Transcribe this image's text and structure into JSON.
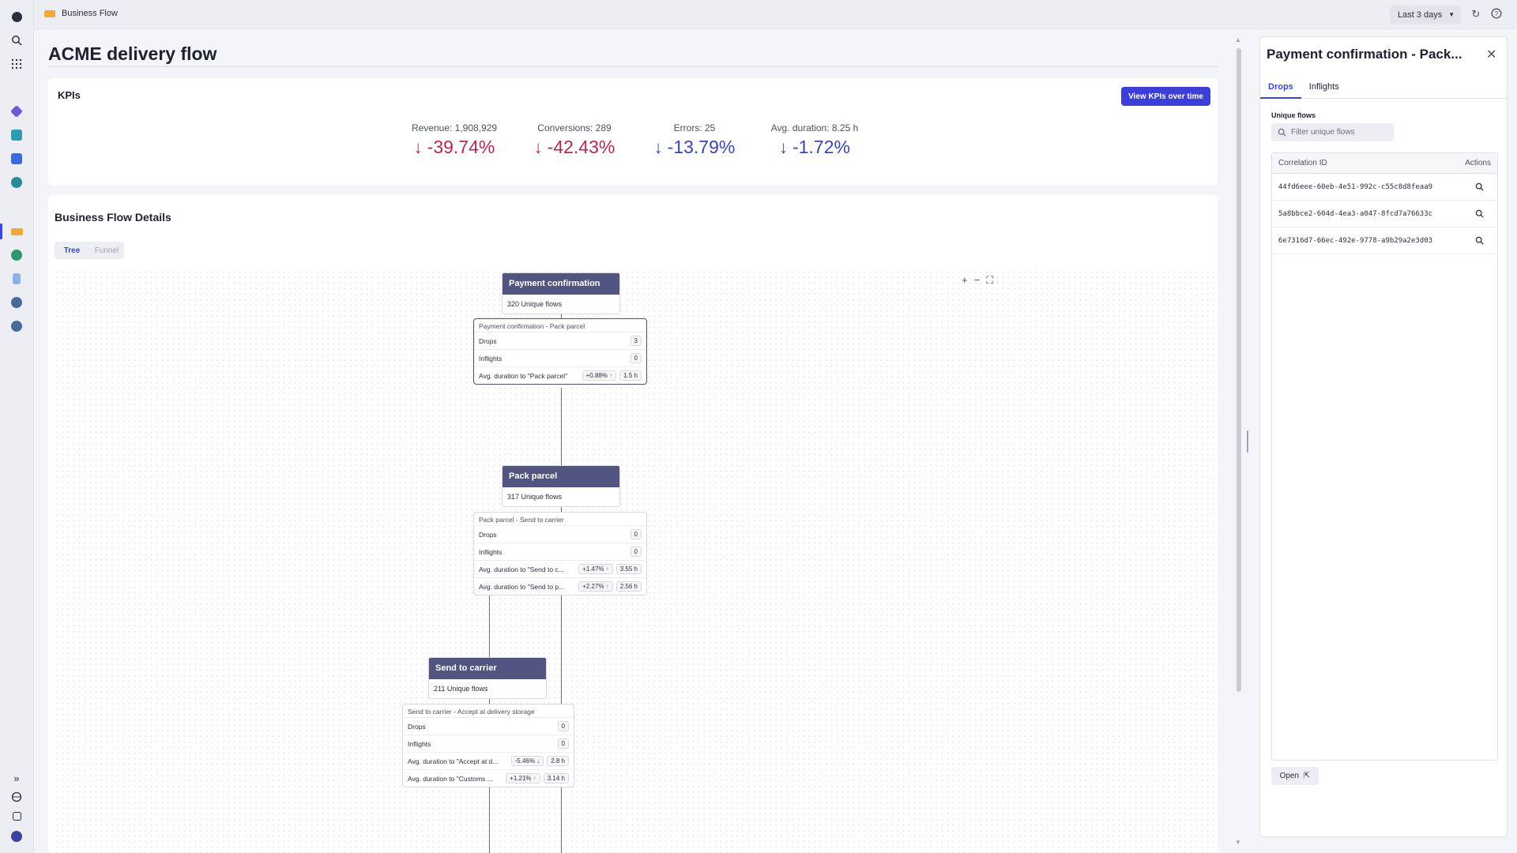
{
  "colors": {
    "accent": "#3b3fd6",
    "node_header": "#515580",
    "negative": "#b22a52",
    "neutral_down": "#3b45b0"
  },
  "topbar": {
    "breadcrumb": "Business Flow",
    "timeframe": "Last 3 days"
  },
  "page": {
    "title": "ACME delivery flow"
  },
  "kpis": {
    "section_label": "KPIs",
    "button_label": "View KPIs over time",
    "items": [
      {
        "name": "Revenue: 1,908,929",
        "value": "-39.74%"
      },
      {
        "name": "Conversions: 289",
        "value": "-42.43%"
      },
      {
        "name": "Errors: 25",
        "value": "-13.79%"
      },
      {
        "name": "Avg. duration: 8.25 h",
        "value": "-1.72%"
      }
    ]
  },
  "flow": {
    "section_label": "Business Flow Details",
    "tabs": [
      "Tree",
      "Funnel"
    ],
    "nodes": [
      {
        "title": "Payment confirmation",
        "subtitle": "320 Unique flows"
      },
      {
        "title": "Pack parcel",
        "subtitle": "317 Unique flows"
      },
      {
        "title": "Send to carrier",
        "subtitle": "211 Unique flows"
      }
    ],
    "edges": [
      {
        "title": "Payment confirmation - Pack parcel",
        "rows": [
          {
            "label": "Drops",
            "value": "3"
          },
          {
            "label": "Inflights",
            "value": "0"
          },
          {
            "label": "Avg. duration to \"Pack parcel\"",
            "change": "+0.88%",
            "value": "1.5 h"
          }
        ]
      },
      {
        "title": "Pack parcel - Send to carrier",
        "rows": [
          {
            "label": "Drops",
            "value": "0"
          },
          {
            "label": "Inflights",
            "value": "0"
          },
          {
            "label": "Avg. duration to \"Send to c...",
            "change": "+1.47%",
            "value": "3.55 h"
          },
          {
            "label": "Avg. duration to \"Send to p...",
            "change": "+2.27%",
            "value": "2.56 h"
          }
        ]
      },
      {
        "title": "Send to carrier - Accept at delivery storage",
        "rows": [
          {
            "label": "Drops",
            "value": "0"
          },
          {
            "label": "Inflights",
            "value": "0"
          },
          {
            "label": "Avg. duration to \"Accept at d...",
            "change": "-5.46%",
            "value": "2.8 h"
          },
          {
            "label": "Avg. duration to \"Customs ...",
            "change": "+1.21%",
            "value": "3.14 h"
          }
        ]
      }
    ]
  },
  "panel": {
    "title": "Payment confirmation - Pack...",
    "tabs": [
      "Drops",
      "Inflights"
    ],
    "unique_flows_label": "Unique flows",
    "search_placeholder": "Filter unique flows",
    "columns": [
      "Correlation ID",
      "Actions"
    ],
    "rows": [
      "44fd6eee-60eb-4e51-992c-c55c8d8feaa9",
      "5a8bbce2-604d-4ea3-a047-8fcd7a76633c",
      "6e7316d7-66ec-492e-9778-a9b29a2e3d03"
    ],
    "open_label": "Open"
  }
}
